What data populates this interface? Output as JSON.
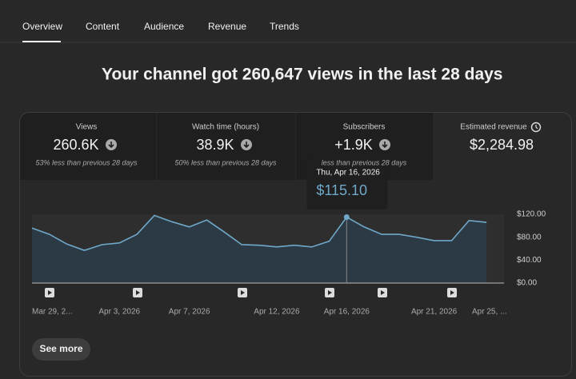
{
  "tabs": [
    "Overview",
    "Content",
    "Audience",
    "Revenue",
    "Trends"
  ],
  "headline": "Your channel got 260,647 views in the last 28 days",
  "cards": [
    {
      "label": "Views",
      "value": "260.6K",
      "note": "53% less than previous 28 days"
    },
    {
      "label": "Watch time (hours)",
      "value": "38.9K",
      "note": "50% less than previous 28 days"
    },
    {
      "label": "Subscribers",
      "value": "+1.9K",
      "note": "less than previous 28 days"
    },
    {
      "label": "Estimated revenue",
      "value": "$2,284.98"
    }
  ],
  "chart_data": {
    "type": "line",
    "categories": [
      "Mar 29, 2...",
      null,
      null,
      null,
      null,
      "Apr 3, 2026",
      null,
      null,
      null,
      "Apr 7, 2026",
      null,
      null,
      null,
      null,
      "Apr 12, 2026",
      null,
      null,
      null,
      "Apr 16, 2026",
      null,
      null,
      null,
      null,
      "Apr 21, 2026",
      null,
      null,
      null,
      "Apr 25, ..."
    ],
    "values": [
      96,
      85,
      68,
      57,
      67,
      70,
      85,
      118,
      107,
      98,
      110,
      89,
      67,
      66,
      63,
      66,
      63,
      73,
      115.1,
      98,
      85,
      85,
      80,
      74,
      74,
      109,
      106,
      null
    ],
    "value_labels": [
      null,
      null,
      null,
      null,
      null,
      null,
      null,
      null,
      null,
      null,
      null,
      null,
      null,
      null,
      null,
      null,
      null,
      null,
      "$115.10",
      null,
      null,
      null,
      null,
      null,
      null,
      null,
      null,
      null
    ],
    "tooltip_title": "Thu, Apr 16, 2026",
    "color": "#6fa8c9",
    "ylim": [
      0,
      120
    ],
    "yticks": [
      {
        "value": 0,
        "label": "$0.00"
      },
      {
        "value": 40,
        "label": "$40.00"
      },
      {
        "value": 80,
        "label": "$80.00"
      },
      {
        "value": 120,
        "label": "$120.00"
      }
    ],
    "grid": false
  },
  "button": "See more"
}
